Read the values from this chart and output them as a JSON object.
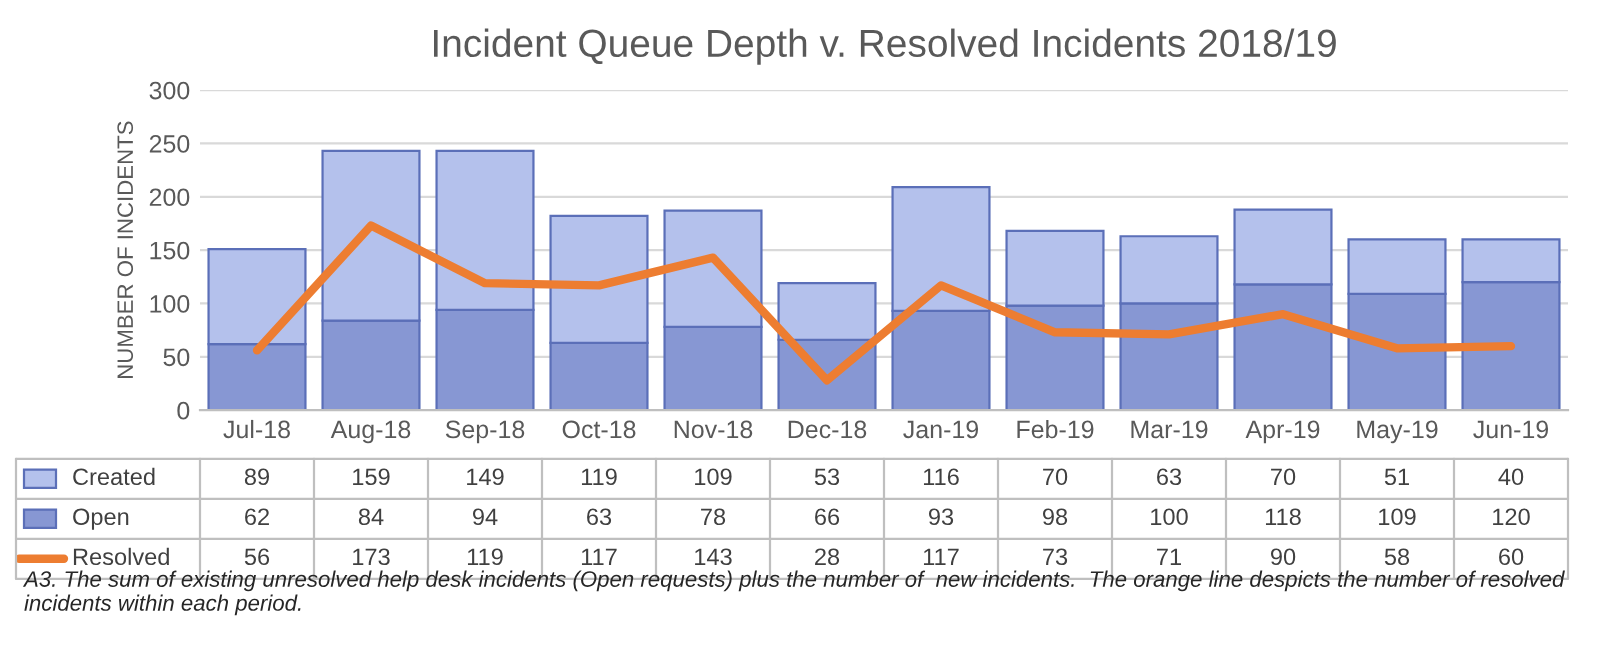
{
  "chart_data": {
    "type": "bar",
    "title": "Incident Queue Depth v. Resolved Incidents 2018/19",
    "ylabel": "NUMBER OF INCIDENTS",
    "categories": [
      "Jul-18",
      "Aug-18",
      "Sep-18",
      "Oct-18",
      "Nov-18",
      "Dec-18",
      "Jan-19",
      "Feb-19",
      "Mar-19",
      "Apr-19",
      "May-19",
      "Jun-19"
    ],
    "stacked": true,
    "series": [
      {
        "name": "Open",
        "color": "#8797d3",
        "values": [
          62,
          84,
          94,
          63,
          78,
          66,
          93,
          98,
          100,
          118,
          109,
          120
        ]
      },
      {
        "name": "Created",
        "color": "#b4c1ec",
        "values": [
          89,
          159,
          149,
          119,
          109,
          53,
          116,
          70,
          63,
          70,
          51,
          40
        ]
      },
      {
        "name": "Resolved",
        "type": "line",
        "color": "#ed7d31",
        "values": [
          56,
          173,
          119,
          117,
          143,
          28,
          117,
          73,
          71,
          90,
          58,
          60
        ]
      }
    ],
    "ylim": [
      0,
      300
    ],
    "yticks": [
      0,
      50,
      100,
      150,
      200,
      250,
      300
    ],
    "grid": "y",
    "legend": "bottom",
    "data_labels": true,
    "annotations": [
      "A3. The sum of existing unresolved help desk incidents (Open requests) plus the number of  new incidents.  The orange line despicts the number of resolved incidents within each period."
    ]
  }
}
